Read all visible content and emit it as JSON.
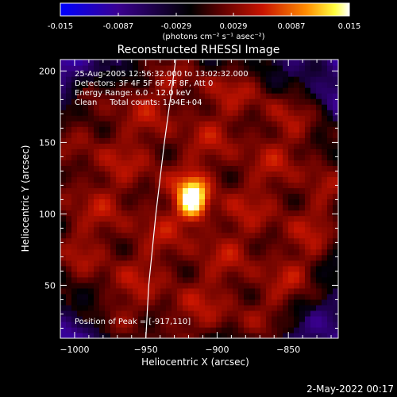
{
  "colorbar": {
    "ticks": [
      "-0.015",
      "-0.0087",
      "-0.0029",
      "0.0029",
      "0.0087",
      "0.015"
    ],
    "units_label": "(photons cm⁻² s⁻¹ asec⁻²)"
  },
  "plot": {
    "title": "Reconstructed RHESSI Image",
    "info": [
      "25-Aug-2005 12:56:32.000 to 13:02:32.000",
      "Detectors: 3F 4F 5F 6F 7F 8F, Att 0",
      "Energy Range: 6.0 - 12.0 keV",
      "Clean     Total counts: 1.94E+04"
    ],
    "peak_label": "Position of Peak = [-917,110]"
  },
  "footer": {
    "timestamp": "2-May-2022 00:17"
  },
  "chart_data": {
    "type": "heatmap",
    "title": "Reconstructed RHESSI Image",
    "xlabel": "Heliocentric X (arcsec)",
    "ylabel": "Heliocentric Y (arcsec)",
    "xlim": [
      -1010,
      -815
    ],
    "ylim": [
      13,
      208
    ],
    "x_ticks": [
      -1000,
      -950,
      -900,
      -850
    ],
    "y_ticks": [
      50,
      100,
      150,
      200
    ],
    "x_tick_labels": [
      "−1000",
      "−950",
      "−900",
      "−850"
    ],
    "y_tick_labels": [
      "50",
      "100",
      "150",
      "200"
    ],
    "colorbar_range": [
      -0.015,
      0.015
    ],
    "colormap": [
      "#0000ff",
      "#4b0082",
      "#000000",
      "#8b0000",
      "#ff0000",
      "#ff8c00",
      "#ffff00",
      "#ffffff"
    ],
    "peak": {
      "x": -917,
      "y": 110,
      "value": 0.015
    },
    "limb_curve": [
      [
        -950,
        13
      ],
      [
        -948,
        50
      ],
      [
        -943,
        100
      ],
      [
        -937,
        150
      ],
      [
        -929,
        208
      ]
    ],
    "sources": [
      {
        "x": -917,
        "y": 110,
        "sigma_x": 7,
        "sigma_y": 10,
        "amp": 0.0145
      }
    ],
    "background_level": 0.003
  }
}
